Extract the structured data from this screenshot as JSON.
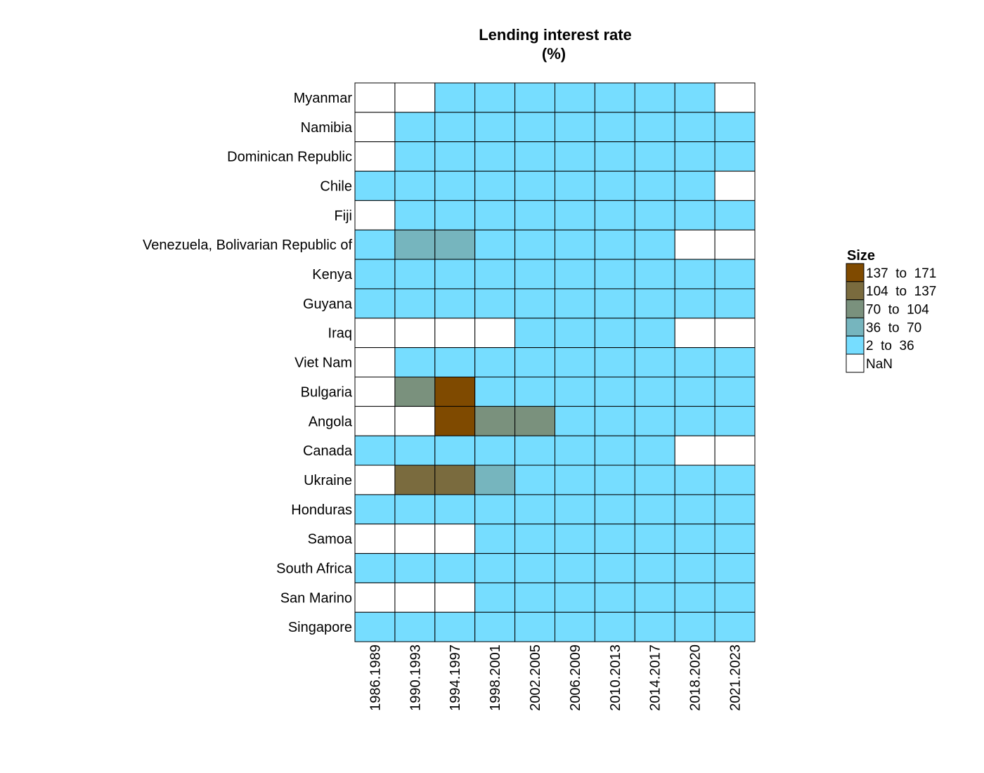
{
  "chart_data": {
    "type": "heatmap",
    "title": "Lending interest rate",
    "subtitle": "(%)",
    "xlabel": "",
    "ylabel": "",
    "legend": {
      "title": "Size",
      "position": "right",
      "bins": [
        {
          "label": "137  to  171",
          "min": 137,
          "max": 171,
          "color": "#7F4A00"
        },
        {
          "label": "104  to  137",
          "min": 104,
          "max": 137,
          "color": "#7A6B3E"
        },
        {
          "label": "70  to  104",
          "min": 70,
          "max": 104,
          "color": "#7A917D"
        },
        {
          "label": "36  to  70",
          "min": 36,
          "max": 70,
          "color": "#76B5BE"
        },
        {
          "label": "2  to  36",
          "min": 2,
          "max": 36,
          "color": "#76DDFF"
        },
        {
          "label": "NaN",
          "min": null,
          "max": null,
          "color": "#FFFFFF"
        }
      ]
    },
    "columns": [
      "1986.1989",
      "1990.1993",
      "1994.1997",
      "1998.2001",
      "2002.2005",
      "2006.2009",
      "2010.2013",
      "2014.2017",
      "2018.2020",
      "2021.2023"
    ],
    "rows": [
      "Myanmar",
      "Namibia",
      "Dominican Republic",
      "Chile",
      "Fiji",
      "Venezuela, Bolivarian Republic of",
      "Kenya",
      "Guyana",
      "Iraq",
      "Viet Nam",
      "Bulgaria",
      "Angola",
      "Canada",
      "Ukraine",
      "Honduras",
      "Samoa",
      "South Africa",
      "San Marino",
      "Singapore"
    ],
    "cell_bins": [
      [
        "NaN",
        "NaN",
        "2  to  36",
        "2  to  36",
        "2  to  36",
        "2  to  36",
        "2  to  36",
        "2  to  36",
        "2  to  36",
        "NaN"
      ],
      [
        "NaN",
        "2  to  36",
        "2  to  36",
        "2  to  36",
        "2  to  36",
        "2  to  36",
        "2  to  36",
        "2  to  36",
        "2  to  36",
        "2  to  36"
      ],
      [
        "NaN",
        "2  to  36",
        "2  to  36",
        "2  to  36",
        "2  to  36",
        "2  to  36",
        "2  to  36",
        "2  to  36",
        "2  to  36",
        "2  to  36"
      ],
      [
        "2  to  36",
        "2  to  36",
        "2  to  36",
        "2  to  36",
        "2  to  36",
        "2  to  36",
        "2  to  36",
        "2  to  36",
        "2  to  36",
        "NaN"
      ],
      [
        "NaN",
        "2  to  36",
        "2  to  36",
        "2  to  36",
        "2  to  36",
        "2  to  36",
        "2  to  36",
        "2  to  36",
        "2  to  36",
        "2  to  36"
      ],
      [
        "2  to  36",
        "36  to  70",
        "36  to  70",
        "2  to  36",
        "2  to  36",
        "2  to  36",
        "2  to  36",
        "2  to  36",
        "NaN",
        "NaN"
      ],
      [
        "2  to  36",
        "2  to  36",
        "2  to  36",
        "2  to  36",
        "2  to  36",
        "2  to  36",
        "2  to  36",
        "2  to  36",
        "2  to  36",
        "2  to  36"
      ],
      [
        "2  to  36",
        "2  to  36",
        "2  to  36",
        "2  to  36",
        "2  to  36",
        "2  to  36",
        "2  to  36",
        "2  to  36",
        "2  to  36",
        "2  to  36"
      ],
      [
        "NaN",
        "NaN",
        "NaN",
        "NaN",
        "2  to  36",
        "2  to  36",
        "2  to  36",
        "2  to  36",
        "NaN",
        "NaN"
      ],
      [
        "NaN",
        "2  to  36",
        "2  to  36",
        "2  to  36",
        "2  to  36",
        "2  to  36",
        "2  to  36",
        "2  to  36",
        "2  to  36",
        "2  to  36"
      ],
      [
        "NaN",
        "70  to  104",
        "137  to  171",
        "2  to  36",
        "2  to  36",
        "2  to  36",
        "2  to  36",
        "2  to  36",
        "2  to  36",
        "2  to  36"
      ],
      [
        "NaN",
        "NaN",
        "137  to  171",
        "70  to  104",
        "70  to  104",
        "2  to  36",
        "2  to  36",
        "2  to  36",
        "2  to  36",
        "2  to  36"
      ],
      [
        "2  to  36",
        "2  to  36",
        "2  to  36",
        "2  to  36",
        "2  to  36",
        "2  to  36",
        "2  to  36",
        "2  to  36",
        "NaN",
        "NaN"
      ],
      [
        "NaN",
        "104  to  137",
        "104  to  137",
        "36  to  70",
        "2  to  36",
        "2  to  36",
        "2  to  36",
        "2  to  36",
        "2  to  36",
        "2  to  36"
      ],
      [
        "2  to  36",
        "2  to  36",
        "2  to  36",
        "2  to  36",
        "2  to  36",
        "2  to  36",
        "2  to  36",
        "2  to  36",
        "2  to  36",
        "2  to  36"
      ],
      [
        "NaN",
        "NaN",
        "NaN",
        "2  to  36",
        "2  to  36",
        "2  to  36",
        "2  to  36",
        "2  to  36",
        "2  to  36",
        "2  to  36"
      ],
      [
        "2  to  36",
        "2  to  36",
        "2  to  36",
        "2  to  36",
        "2  to  36",
        "2  to  36",
        "2  to  36",
        "2  to  36",
        "2  to  36",
        "2  to  36"
      ],
      [
        "NaN",
        "NaN",
        "NaN",
        "2  to  36",
        "2  to  36",
        "2  to  36",
        "2  to  36",
        "2  to  36",
        "2  to  36",
        "2  to  36"
      ],
      [
        "2  to  36",
        "2  to  36",
        "2  to  36",
        "2  to  36",
        "2  to  36",
        "2  to  36",
        "2  to  36",
        "2  to  36",
        "2  to  36",
        "2  to  36"
      ]
    ]
  }
}
